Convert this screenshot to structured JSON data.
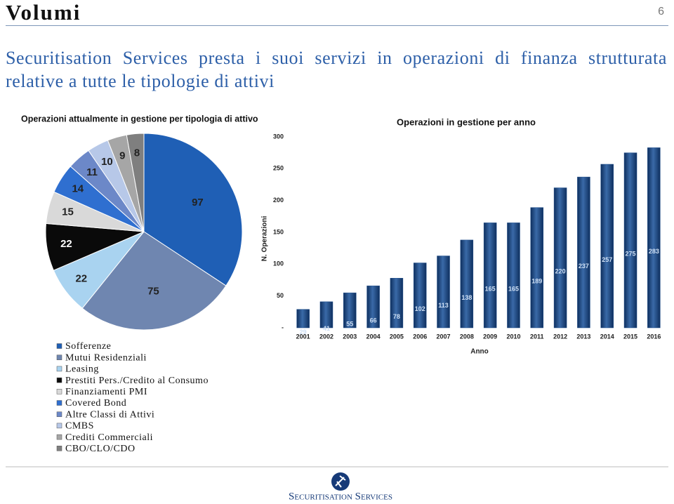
{
  "header": {
    "title": "Volumi",
    "page_number": "6"
  },
  "subtitle": "Securitisation Services presta i suoi servizi in operazioni di finanza strutturata relative a tutte le tipologie di attivi",
  "chart_data": [
    {
      "type": "pie",
      "title": "Operazioni attualmente in gestione per tipologia di attivo",
      "categories": [
        "Sofferenze",
        "Mutui Residenziali",
        "Leasing",
        "Prestiti Pers./Credito al Consumo",
        "Finanziamenti PMI",
        "Covered Bond",
        "Altre Classi di Attivi",
        "CMBS",
        "Crediti Commerciali",
        "CBO/CLO/CDO"
      ],
      "values": [
        97,
        75,
        22,
        22,
        15,
        14,
        11,
        10,
        9,
        8
      ],
      "colors": [
        "#1f5fb5",
        "#6f86b0",
        "#a9d3f0",
        "#0a0a0a",
        "#d9d9d9",
        "#2f6fd0",
        "#6c88c8",
        "#b7c8e8",
        "#a6a6a6",
        "#7f7f7f"
      ]
    },
    {
      "type": "bar",
      "title": "Operazioni in gestione per anno",
      "x_label": "Anno",
      "y_label": "N. Operazioni",
      "categories": [
        "2001",
        "2002",
        "2003",
        "2004",
        "2005",
        "2006",
        "2007",
        "2008",
        "2009",
        "2010",
        "2011",
        "2012",
        "2013",
        "2014",
        "2015",
        "2016"
      ],
      "values": [
        29,
        41,
        55,
        66,
        78,
        102,
        113,
        138,
        165,
        165,
        189,
        220,
        237,
        257,
        275,
        283
      ],
      "color": "#1f4e8c",
      "ylim": [
        0,
        300
      ],
      "yticks": [
        {
          "value": 0,
          "label": "-"
        },
        50,
        100,
        150,
        200,
        250,
        300
      ]
    }
  ],
  "footer": {
    "logo_text": "Securitisation Services"
  }
}
